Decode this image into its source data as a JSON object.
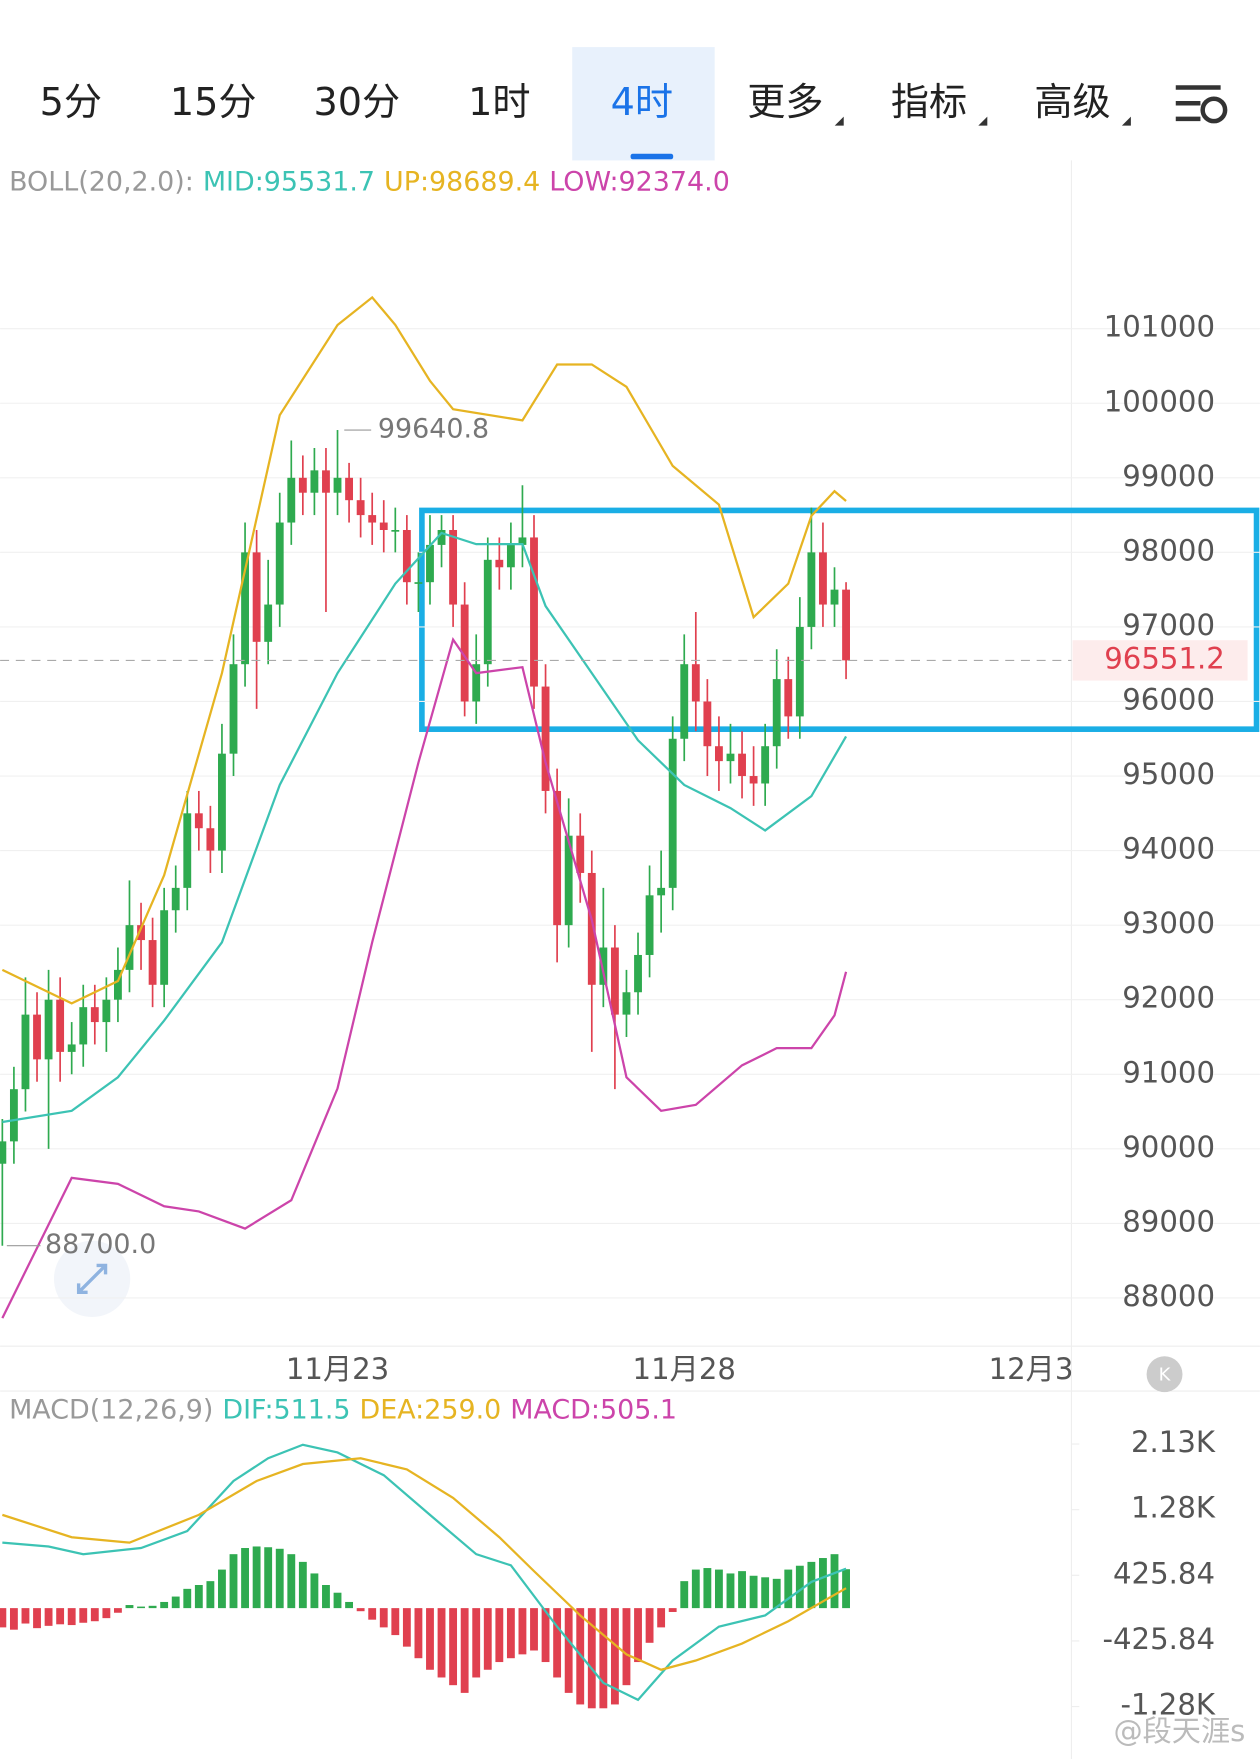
{
  "tabs": [
    "5分",
    "15分",
    "30分",
    "1时",
    "4时",
    "更多",
    "指标",
    "高级"
  ],
  "active_tab": 4,
  "chart_data": [
    {
      "type": "candlestick",
      "legend": {
        "name": "BOLL(20,2.0):",
        "mid": "MID:95531.7",
        "up": "UP:98689.4",
        "low": "LOW:92374.0"
      },
      "up_color": "#2eaa4f",
      "down_color": "#e0404f",
      "xlim": [
        0,
        92.5
      ],
      "xticks": [
        {
          "value": 29,
          "label": "11月23"
        },
        {
          "value": 59,
          "label": "11月28"
        },
        {
          "value": 89,
          "label": "12月3"
        }
      ],
      "ylim": [
        87353,
        103257
      ],
      "yticks": [
        88000,
        89000,
        90000,
        91000,
        92000,
        93000,
        94000,
        95000,
        96000,
        97000,
        98000,
        99000,
        100000,
        101000
      ],
      "grid": true,
      "max_label": "99640.8",
      "min_label": "88700.0",
      "open": [
        89800,
        90100,
        90800,
        91800,
        91200,
        92000,
        91300,
        91400,
        91900,
        91700,
        92000,
        92400,
        93000,
        92800,
        92200,
        93200,
        93500,
        94500,
        94300,
        94000,
        95300,
        96500,
        98000,
        96800,
        97300,
        98400,
        99000,
        98800,
        99100,
        98800,
        99000,
        98700,
        98500,
        98400,
        98300,
        98300,
        97600,
        97600,
        98100,
        98300,
        97300,
        96000,
        96500,
        97900,
        97800,
        98100,
        98200,
        96200,
        94800,
        93000,
        94200,
        93700,
        92200,
        92700,
        91800,
        92100,
        92600,
        93400,
        93500,
        95500,
        96500,
        96000,
        95400,
        95200,
        95300,
        95000,
        94900,
        95400,
        96300,
        95800,
        97000,
        98000,
        97300,
        97500
      ],
      "high": [
        90400,
        91100,
        92300,
        92100,
        92400,
        92300,
        91700,
        92200,
        92200,
        92300,
        92700,
        93600,
        93300,
        93100,
        93500,
        93800,
        94800,
        94800,
        94600,
        95700,
        96900,
        98400,
        98300,
        97900,
        98800,
        99500,
        99300,
        99400,
        99400,
        99640.8,
        99200,
        99000,
        98800,
        98700,
        98600,
        98500,
        98000,
        98500,
        98500,
        98500,
        97600,
        96900,
        98200,
        98200,
        98400,
        98900,
        98500,
        96500,
        95100,
        94700,
        94500,
        94000,
        93500,
        93000,
        92400,
        92900,
        93800,
        94000,
        95800,
        96900,
        97200,
        96300,
        95800,
        95700,
        95600,
        95400,
        95700,
        96700,
        96600,
        97400,
        98600,
        98400,
        97800,
        97600
      ],
      "low": [
        88700,
        89800,
        90500,
        90900,
        90000,
        90900,
        91000,
        91100,
        91400,
        91300,
        91700,
        92100,
        92400,
        91900,
        91900,
        92900,
        93200,
        94000,
        93700,
        93700,
        95000,
        96200,
        95900,
        96500,
        97000,
        98100,
        98500,
        98500,
        97200,
        98500,
        98400,
        98200,
        98100,
        98000,
        98000,
        97300,
        97200,
        97300,
        97800,
        97000,
        95800,
        95700,
        96200,
        97500,
        97500,
        97800,
        95900,
        94500,
        92500,
        92700,
        93300,
        91300,
        91900,
        90800,
        91500,
        91800,
        92300,
        92900,
        93200,
        95200,
        95600,
        95000,
        94800,
        94900,
        94700,
        94600,
        94600,
        95100,
        95500,
        95500,
        96700,
        97000,
        97000,
        96300
      ],
      "close": [
        90100,
        90800,
        91800,
        91200,
        92000,
        91300,
        91400,
        91900,
        91700,
        92000,
        92400,
        93000,
        92800,
        92200,
        93200,
        93500,
        94500,
        94300,
        94000,
        95300,
        96500,
        98000,
        96800,
        97300,
        98400,
        99000,
        98800,
        99100,
        98800,
        99000,
        98700,
        98500,
        98400,
        98300,
        98300,
        97600,
        97600,
        98100,
        98300,
        97300,
        96000,
        96500,
        97900,
        97800,
        98100,
        98200,
        96200,
        94800,
        93000,
        94200,
        93700,
        92200,
        92700,
        91800,
        92100,
        92600,
        93400,
        93500,
        95500,
        96500,
        96000,
        95400,
        95200,
        95300,
        95000,
        94900,
        95400,
        96300,
        95800,
        97000,
        98000,
        97300,
        97500,
        96551.2
      ],
      "series": [
        {
          "name": "UP",
          "color": "#e6b422",
          "x": [
            0,
            6,
            10,
            14,
            19,
            24,
            29,
            32,
            34,
            37,
            39,
            45,
            48,
            51,
            54,
            58,
            62,
            65,
            68,
            70,
            72,
            73
          ],
          "values": [
            92400,
            91950,
            92250,
            93670,
            96380,
            99840,
            101050,
            101420,
            101050,
            100300,
            99920,
            99770,
            100520,
            100520,
            100220,
            99160,
            98640,
            97130,
            97580,
            98490,
            98820,
            98689.4
          ]
        },
        {
          "name": "MID",
          "color": "#3cc3b4",
          "x": [
            0,
            6,
            10,
            14,
            19,
            24,
            29,
            34,
            38,
            41,
            45,
            47,
            51,
            55,
            59,
            63,
            66,
            70,
            73
          ],
          "values": [
            90360,
            90510,
            90960,
            91720,
            92770,
            94880,
            96380,
            97580,
            98260,
            98110,
            98110,
            97280,
            96380,
            95480,
            94880,
            94570,
            94270,
            94730,
            95531.7
          ]
        },
        {
          "name": "LOW",
          "color": "#cc44aa",
          "x": [
            0,
            6,
            10,
            14,
            17,
            21,
            25,
            29,
            32,
            36,
            39,
            41,
            45,
            47,
            51,
            54,
            57,
            60,
            64,
            67,
            70,
            72,
            73
          ],
          "values": [
            87730,
            89610,
            89530,
            89230,
            89160,
            88930,
            89310,
            90810,
            92770,
            95180,
            96830,
            96380,
            96460,
            95180,
            93070,
            90960,
            90510,
            90590,
            91120,
            91350,
            91350,
            91790,
            92374
          ]
        }
      ]
    },
    {
      "type": "macd",
      "legend": {
        "name": "MACD(12,26,9)",
        "dif": "DIF:511.5",
        "dea": "DEA:259.0",
        "macd": "MACD:505.1"
      },
      "up_color": "#2eaa4f",
      "down_color": "#e0404f",
      "xlim": [
        0,
        92.5
      ],
      "ylim": [
        -1958,
        2817
      ],
      "yticks": [
        {
          "value": 2129.2,
          "label": "2.13K"
        },
        {
          "value": 1277.52,
          "label": "1.28K"
        },
        425.84,
        -425.84,
        {
          "value": -1277.52,
          "label": "-1.28K"
        }
      ],
      "values": [
        -250,
        -280,
        -200,
        -260,
        -230,
        -210,
        -220,
        -190,
        -170,
        -130,
        -60,
        40,
        20,
        30,
        80,
        150,
        250,
        300,
        350,
        500,
        700,
        780,
        800,
        790,
        770,
        700,
        600,
        450,
        300,
        200,
        80,
        -40,
        -150,
        -250,
        -350,
        -500,
        -650,
        -800,
        -900,
        -1000,
        -1100,
        -900,
        -800,
        -700,
        -650,
        -600,
        -550,
        -700,
        -900,
        -1100,
        -1250,
        -1300,
        -1300,
        -1250,
        -1000,
        -700,
        -450,
        -250,
        -50,
        350,
        500,
        520,
        500,
        450,
        480,
        420,
        400,
        380,
        500,
        550,
        600,
        650,
        700,
        505.1
      ],
      "series": [
        {
          "name": "DIF",
          "color": "#3cc3b4",
          "x": [
            0,
            4,
            7,
            12,
            16,
            20,
            23,
            26,
            29,
            33,
            37,
            41,
            44,
            48,
            52,
            55,
            58,
            62,
            66,
            70,
            73
          ],
          "values": [
            850,
            800,
            700,
            780,
            1000,
            1650,
            1945,
            2120,
            2020,
            1725,
            1210,
            700,
            555,
            -240,
            -970,
            -1190,
            -680,
            -240,
            -95,
            340,
            511.5
          ]
        },
        {
          "name": "DEA",
          "color": "#e6b422",
          "x": [
            0,
            6,
            11,
            17,
            22,
            26,
            31,
            35,
            39,
            43,
            46,
            50,
            54,
            57,
            60,
            64,
            68,
            73
          ],
          "values": [
            1210,
            920,
            850,
            1210,
            1650,
            1870,
            1945,
            1800,
            1430,
            920,
            480,
            -95,
            -600,
            -800,
            -680,
            -460,
            -170,
            259
          ]
        }
      ]
    }
  ],
  "watermark": "@段天涯s"
}
